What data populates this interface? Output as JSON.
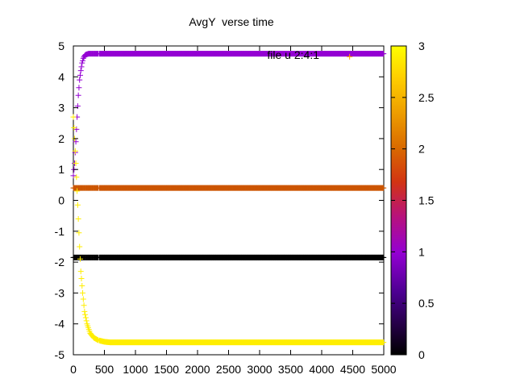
{
  "chart_data": {
    "type": "scatter",
    "title": "AvgY  verse time",
    "xlabel": "",
    "ylabel": "",
    "xlim": [
      0,
      5000
    ],
    "ylim": [
      -5,
      5
    ],
    "xticks": [
      0,
      500,
      1000,
      1500,
      2000,
      2500,
      3000,
      3500,
      4000,
      4500,
      5000
    ],
    "yticks": [
      -5,
      -4,
      -3,
      -2,
      -1,
      0,
      1,
      2,
      3,
      4,
      5
    ],
    "grid": false,
    "marker": "+",
    "annotation": "file u 2:4:1",
    "colorbar": {
      "range": [
        0,
        3
      ],
      "ticks": [
        0,
        0.5,
        1,
        1.5,
        2,
        2.5,
        3
      ],
      "palette": "gnuplot default (black → purple → red → orange → yellow)"
    },
    "series": [
      {
        "color_value": 1.0,
        "color": "#9400d3",
        "description": "rises from ~0.8 to plateau at ~4.75",
        "points": [
          [
            0,
            0.8
          ],
          [
            20,
            1.2
          ],
          [
            40,
            1.9
          ],
          [
            60,
            2.7
          ],
          [
            80,
            3.4
          ],
          [
            100,
            3.9
          ],
          [
            120,
            4.2
          ],
          [
            140,
            4.45
          ],
          [
            160,
            4.6
          ],
          [
            180,
            4.68
          ],
          [
            200,
            4.72
          ],
          [
            250,
            4.75
          ],
          [
            300,
            4.75
          ],
          [
            5000,
            4.75
          ]
        ]
      },
      {
        "color_value": 2.0,
        "color": "#cc5500",
        "description": "flat at ~0.4",
        "points": [
          [
            0,
            0.4
          ],
          [
            5000,
            0.4
          ]
        ]
      },
      {
        "color_value": 0.0,
        "color": "#000000",
        "description": "flat at ~-1.85",
        "points": [
          [
            0,
            -1.85
          ],
          [
            5000,
            -1.85
          ]
        ]
      },
      {
        "color_value": 3.0,
        "color": "#ffee00",
        "description": "falls from ~2.7 to plateau at ~-4.6",
        "points": [
          [
            0,
            2.7
          ],
          [
            20,
            2.0
          ],
          [
            40,
            1.2
          ],
          [
            60,
            0.3
          ],
          [
            80,
            -0.6
          ],
          [
            100,
            -1.5
          ],
          [
            120,
            -2.3
          ],
          [
            150,
            -3.0
          ],
          [
            180,
            -3.6
          ],
          [
            220,
            -4.0
          ],
          [
            270,
            -4.3
          ],
          [
            330,
            -4.45
          ],
          [
            400,
            -4.53
          ],
          [
            500,
            -4.58
          ],
          [
            600,
            -4.6
          ],
          [
            5000,
            -4.6
          ]
        ]
      }
    ]
  }
}
